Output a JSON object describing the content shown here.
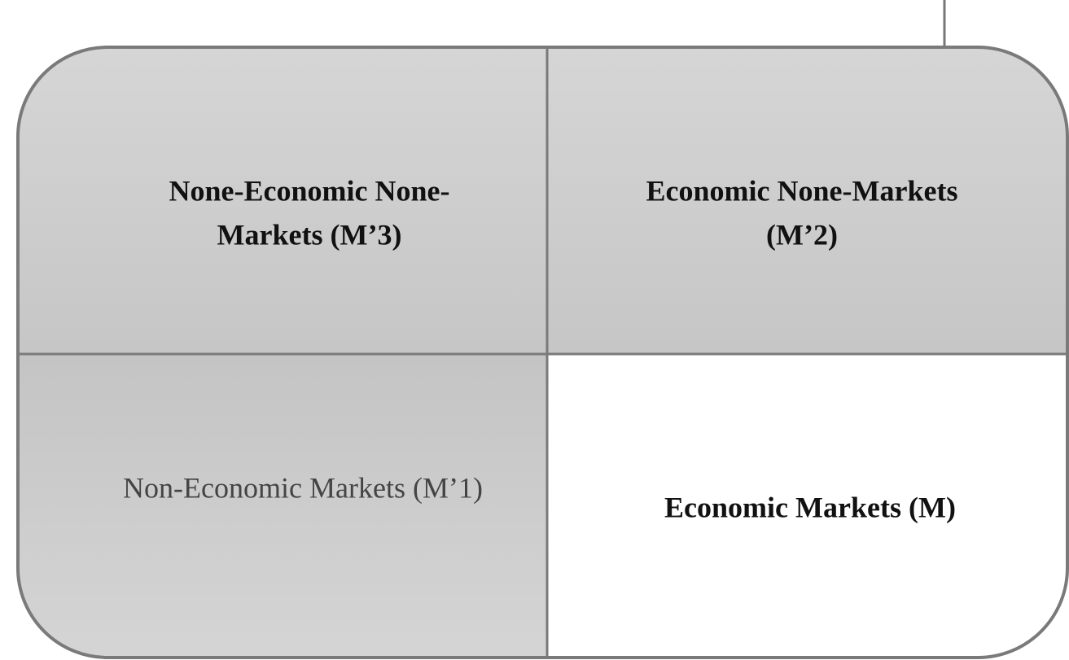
{
  "cells": [
    {
      "lines": [
        "None-Economic None-",
        "Markets (M’3)"
      ]
    },
    {
      "lines": [
        "Economic None-Markets",
        "(M’2)"
      ]
    },
    {
      "lines": [
        "Non-Economic Markets (M’1)"
      ]
    },
    {
      "lines": [
        "Economic Markets (M)"
      ]
    }
  ]
}
